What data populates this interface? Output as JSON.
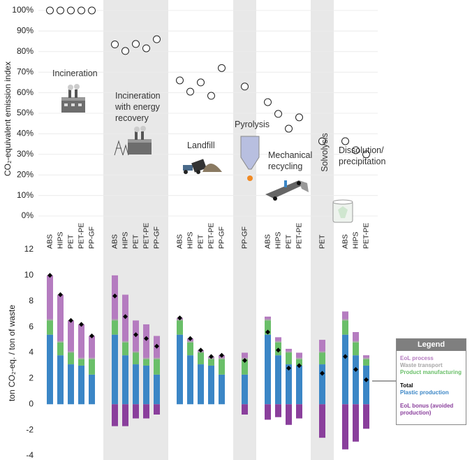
{
  "chart_data": [
    {
      "type": "scatter",
      "y_label": "CO₂-equivalent emission index",
      "ylim": [
        0,
        100
      ],
      "yticks": [
        {
          "value": 0,
          "label": "0%"
        },
        {
          "value": 10,
          "label": "10%"
        },
        {
          "value": 20,
          "label": "20%"
        },
        {
          "value": 30,
          "label": "30%"
        },
        {
          "value": 40,
          "label": "40%"
        },
        {
          "value": 50,
          "label": "50%"
        },
        {
          "value": 60,
          "label": "60%"
        },
        {
          "value": 70,
          "label": "70%"
        },
        {
          "value": 80,
          "label": "80%"
        },
        {
          "value": 90,
          "label": "90%"
        },
        {
          "value": 100,
          "label": "100%"
        }
      ],
      "grid": true,
      "marker_color": "#222222",
      "groups": [
        {
          "label": "Incineration",
          "categories": [
            "ABS",
            "HIPS",
            "PET",
            "PET-PE",
            "PP-GF"
          ],
          "values": [
            100,
            100,
            100,
            100,
            100
          ]
        },
        {
          "label": "Incineration with energy recovery",
          "categories": [
            "ABS",
            "HIPS",
            "PET",
            "PET-PE",
            "PP-GF"
          ],
          "values": [
            83.5,
            80.3,
            83.7,
            81.6,
            86
          ]
        },
        {
          "label": "Landfill",
          "categories": [
            "ABS",
            "HIPS",
            "PET",
            "PET-PE",
            "PP-GF"
          ],
          "values": [
            66,
            60.5,
            65,
            58.5,
            72
          ]
        },
        {
          "label": "Pyrolysis",
          "categories": [
            "PP-GF"
          ],
          "values": [
            63
          ]
        },
        {
          "label": "Mechanical recycling",
          "categories": [
            "ABS",
            "HIPS",
            "PET",
            "PET-PE"
          ],
          "values": [
            55.4,
            49.7,
            42.5,
            48
          ]
        },
        {
          "label": "Solvolysis",
          "categories": [
            "PET"
          ],
          "values": [
            36.4
          ]
        },
        {
          "label": "Dissolution/ precipitation",
          "categories": [
            "ABS",
            "HIPS",
            "PET-PE"
          ],
          "values": [
            36.4,
            32,
            30
          ]
        }
      ]
    },
    {
      "type": "bar",
      "stacked": true,
      "y_label": "ton CO₂-eq. / ton of waste",
      "ylim": [
        -4,
        12
      ],
      "yticks": [
        -4,
        -2,
        0,
        2,
        4,
        6,
        8,
        10,
        12
      ],
      "legend_title": "Legend",
      "series": [
        {
          "name": "Plastic production",
          "color": "#3b86c6",
          "values": [
            5.4,
            3.8,
            3.1,
            3.0,
            2.3,
            5.4,
            3.8,
            3.1,
            3.0,
            2.3,
            5.4,
            3.8,
            3.1,
            3.0,
            2.3,
            2.3,
            5.4,
            3.8,
            3.1,
            3.0,
            3.1,
            5.4,
            3.8,
            3.0
          ]
        },
        {
          "name": "Product manufacturing",
          "color": "#6abf69",
          "values": [
            1.1,
            1.0,
            0.9,
            0.5,
            1.2,
            1.1,
            1.0,
            0.9,
            0.5,
            1.2,
            1.1,
            1.0,
            0.9,
            0.5,
            1.2,
            1.2,
            1.1,
            1.0,
            0.9,
            0.5,
            0.9,
            1.1,
            1.0,
            0.5
          ]
        },
        {
          "name": "Waste transport",
          "color": "#a6a6a6",
          "values": [
            0.1,
            0.1,
            0.1,
            0.1,
            0.1,
            0.1,
            0.1,
            0.1,
            0.1,
            0.1,
            0.1,
            0.1,
            0.1,
            0.1,
            0.1,
            0.1,
            0.1,
            0.1,
            0.1,
            0.1,
            0.1,
            0.1,
            0.1,
            0.1
          ]
        },
        {
          "name": "EoL process",
          "color": "#b57cc0",
          "values": [
            3.4,
            3.6,
            2.4,
            2.6,
            1.7,
            3.4,
            3.6,
            2.4,
            2.6,
            1.7,
            0.1,
            0.2,
            0.1,
            0.1,
            0.2,
            0.4,
            0.2,
            0.3,
            0.2,
            0.4,
            0.9,
            0.6,
            0.7,
            0.2
          ]
        },
        {
          "name": "EoL bonus (avoided production)",
          "color": "#8a3f9c",
          "values": [
            0,
            0,
            0,
            0,
            0,
            -1.7,
            -1.7,
            -1.1,
            -1.1,
            -0.8,
            0,
            0,
            0,
            0,
            0,
            -0.8,
            -1.2,
            -1.0,
            -1.6,
            -1.1,
            -2.6,
            -3.5,
            -2.9,
            -1.9
          ]
        },
        {
          "name": "Total",
          "color": "#000000",
          "marker": "diamond",
          "values": [
            10,
            8.5,
            6.5,
            6.2,
            5.3,
            8.4,
            6.8,
            5.4,
            5.1,
            4.5,
            6.7,
            5.1,
            4.2,
            3.7,
            3.8,
            3.4,
            5.6,
            4.2,
            2.8,
            3.0,
            2.4,
            3.7,
            2.7,
            1.9
          ]
        }
      ]
    }
  ]
}
